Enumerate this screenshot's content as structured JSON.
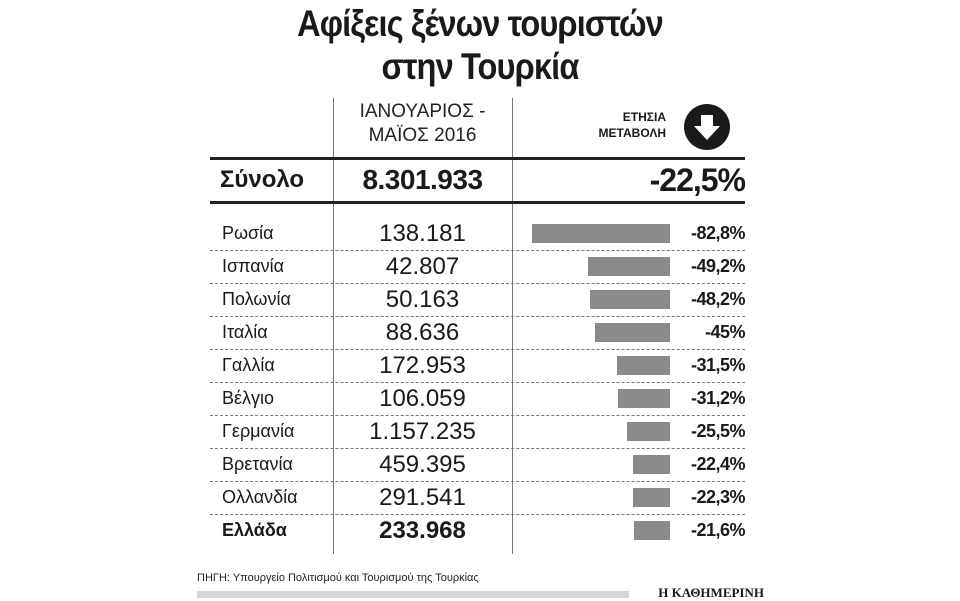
{
  "title": {
    "line1": "Αφίξεις ξένων τουριστών",
    "line2": "στην Τουρκία"
  },
  "columns": {
    "period_line1": "ΙΑΝΟΥΑΡΙΟΣ -",
    "period_line2": "ΜΑΪΟΣ 2016",
    "change_line1": "ΕΤΗΣΙΑ",
    "change_line2": "ΜΕΤΑΒΟΛΗ",
    "change_icon": "down-arrow-circle-icon"
  },
  "total": {
    "label": "Σύνολο",
    "value": "8.301.933",
    "change": "-22,5%"
  },
  "rows": [
    {
      "country": "Ρωσία",
      "arrivals": "138.181",
      "change": "-82,8%"
    },
    {
      "country": "Ισπανία",
      "arrivals": "42.807",
      "change": "-49,2%"
    },
    {
      "country": "Πολωνία",
      "arrivals": "50.163",
      "change": "-48,2%"
    },
    {
      "country": "Ιταλία",
      "arrivals": "88.636",
      "change": "-45%"
    },
    {
      "country": "Γαλλία",
      "arrivals": "172.953",
      "change": "-31,5%"
    },
    {
      "country": "Βέλγιο",
      "arrivals": "106.059",
      "change": "-31,2%"
    },
    {
      "country": "Γερμανία",
      "arrivals": "1.157.235",
      "change": "-25,5%"
    },
    {
      "country": "Βρετανία",
      "arrivals": "459.395",
      "change": "-22,4%"
    },
    {
      "country": "Ολλανδία",
      "arrivals": "291.541",
      "change": "-22,3%"
    },
    {
      "country": "Ελλάδα",
      "arrivals": "233.968",
      "change": "-21,6%"
    }
  ],
  "footer": {
    "source": "ΠΗΓΗ: Υπουργείο Πολιτισμού και Τουρισμού της Τουρκίας",
    "brand": "Η ΚΑΘΗΜΕΡΙΝΗ"
  },
  "colors": {
    "bar": "#8a8a8a",
    "text": "#1a1a1a"
  },
  "chart_data": {
    "type": "bar",
    "title": "Αφίξεις ξένων τουριστών στην Τουρκία",
    "subtitle": "ΙΑΝΟΥΑΡΙΟΣ - ΜΑΪΟΣ 2016",
    "orientation": "horizontal",
    "categories": [
      "Ρωσία",
      "Ισπανία",
      "Πολωνία",
      "Ιταλία",
      "Γαλλία",
      "Βέλγιο",
      "Γερμανία",
      "Βρετανία",
      "Ολλανδία",
      "Ελλάδα"
    ],
    "series": [
      {
        "name": "Αφίξεις Ιαν-Μάι 2016",
        "values": [
          138181,
          42807,
          50163,
          88636,
          172953,
          106059,
          1157235,
          459395,
          291541,
          233968
        ]
      },
      {
        "name": "Ετήσια μεταβολή (%)",
        "values": [
          -82.8,
          -49.2,
          -48.2,
          -45,
          -31.5,
          -31.2,
          -25.5,
          -22.4,
          -22.3,
          -21.6
        ]
      }
    ],
    "total": {
      "arrivals": 8301933,
      "change_pct": -22.5
    },
    "xlabel": "",
    "ylabel": "",
    "grid": false,
    "legend": "none",
    "source": "Υπουργείο Πολιτισμού και Τουρισμού της Τουρκίας"
  }
}
